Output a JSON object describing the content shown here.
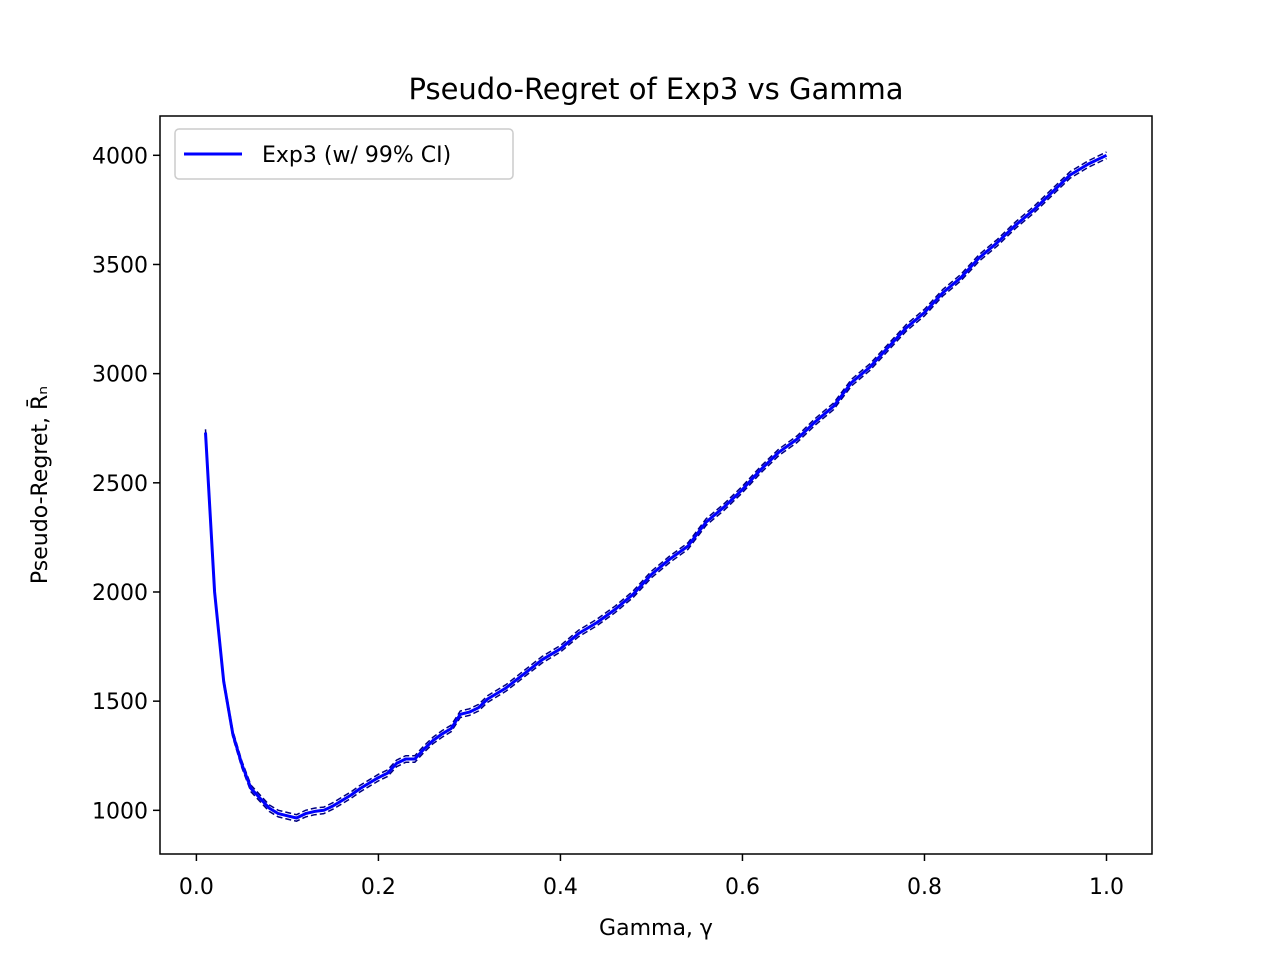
{
  "chart_data": {
    "type": "line",
    "title": "Pseudo-Regret of Exp3 vs Gamma",
    "xlabel": "Gamma, γ",
    "ylabel": "Pseudo-Regret, R̄ₙ",
    "xlim": [
      -0.04,
      1.05
    ],
    "ylim": [
      800,
      4180
    ],
    "xticks": [
      0.0,
      0.2,
      0.4,
      0.6,
      0.8,
      1.0
    ],
    "xtick_labels": [
      "0.0",
      "0.2",
      "0.4",
      "0.6",
      "0.8",
      "1.0"
    ],
    "yticks": [
      1000,
      1500,
      2000,
      2500,
      3000,
      3500,
      4000
    ],
    "ytick_labels": [
      "1000",
      "1500",
      "2000",
      "2500",
      "3000",
      "3500",
      "4000"
    ],
    "grid": false,
    "legend": {
      "position": "top-left",
      "entries": [
        "Exp3 (w/ 99% CI)"
      ]
    },
    "series": [
      {
        "name": "Exp3 (w/ 99% CI)",
        "color": "#0000ff",
        "ci_half_width": 15,
        "x": [
          0.01,
          0.02,
          0.03,
          0.04,
          0.05,
          0.06,
          0.07,
          0.08,
          0.09,
          0.1,
          0.11,
          0.12,
          0.13,
          0.14,
          0.15,
          0.16,
          0.17,
          0.18,
          0.19,
          0.2,
          0.21,
          0.22,
          0.23,
          0.24,
          0.25,
          0.26,
          0.27,
          0.28,
          0.29,
          0.3,
          0.31,
          0.32,
          0.34,
          0.36,
          0.38,
          0.4,
          0.42,
          0.44,
          0.46,
          0.48,
          0.5,
          0.52,
          0.54,
          0.56,
          0.58,
          0.6,
          0.62,
          0.64,
          0.66,
          0.68,
          0.7,
          0.72,
          0.74,
          0.76,
          0.78,
          0.8,
          0.82,
          0.84,
          0.86,
          0.88,
          0.9,
          0.92,
          0.94,
          0.96,
          0.98,
          1.0
        ],
        "y": [
          2730,
          2000,
          1590,
          1350,
          1210,
          1100,
          1055,
          1010,
          985,
          975,
          965,
          985,
          995,
          1000,
          1020,
          1045,
          1070,
          1100,
          1125,
          1150,
          1170,
          1215,
          1235,
          1235,
          1280,
          1320,
          1350,
          1375,
          1440,
          1450,
          1470,
          1510,
          1560,
          1625,
          1690,
          1740,
          1810,
          1860,
          1920,
          1990,
          2080,
          2150,
          2210,
          2320,
          2390,
          2470,
          2560,
          2640,
          2700,
          2780,
          2850,
          2960,
          3030,
          3120,
          3210,
          3280,
          3370,
          3440,
          3530,
          3600,
          3680,
          3750,
          3830,
          3910,
          3960,
          4000
        ]
      }
    ]
  }
}
